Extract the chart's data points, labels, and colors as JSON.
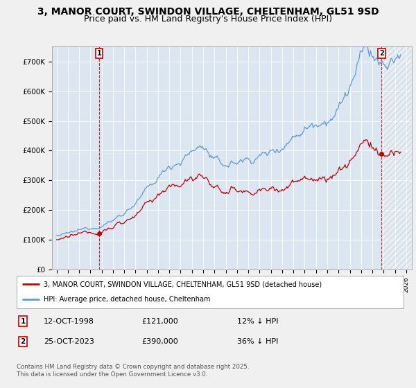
{
  "title": "3, MANOR COURT, SWINDON VILLAGE, CHELTENHAM, GL51 9SD",
  "subtitle": "Price paid vs. HM Land Registry's House Price Index (HPI)",
  "ylim": [
    0,
    750000
  ],
  "yticks": [
    0,
    100000,
    200000,
    300000,
    400000,
    500000,
    600000,
    700000
  ],
  "ytick_labels": [
    "£0",
    "£100K",
    "£200K",
    "£300K",
    "£400K",
    "£500K",
    "£600K",
    "£700K"
  ],
  "hpi_color": "#5b9bd5",
  "price_color": "#c00000",
  "point1_year": 1998.79,
  "point1_price": 121000,
  "point2_year": 2023.81,
  "point2_price": 390000,
  "legend_label_red": "3, MANOR COURT, SWINDON VILLAGE, CHELTENHAM, GL51 9SD (detached house)",
  "legend_label_blue": "HPI: Average price, detached house, Cheltenham",
  "footer": "Contains HM Land Registry data © Crown copyright and database right 2025.\nThis data is licensed under the Open Government Licence v3.0.",
  "bg_color": "#f0f0f0",
  "plot_bg_color": "#dce6f1",
  "grid_color": "#ffffff",
  "title_fontsize": 10,
  "subtitle_fontsize": 9
}
